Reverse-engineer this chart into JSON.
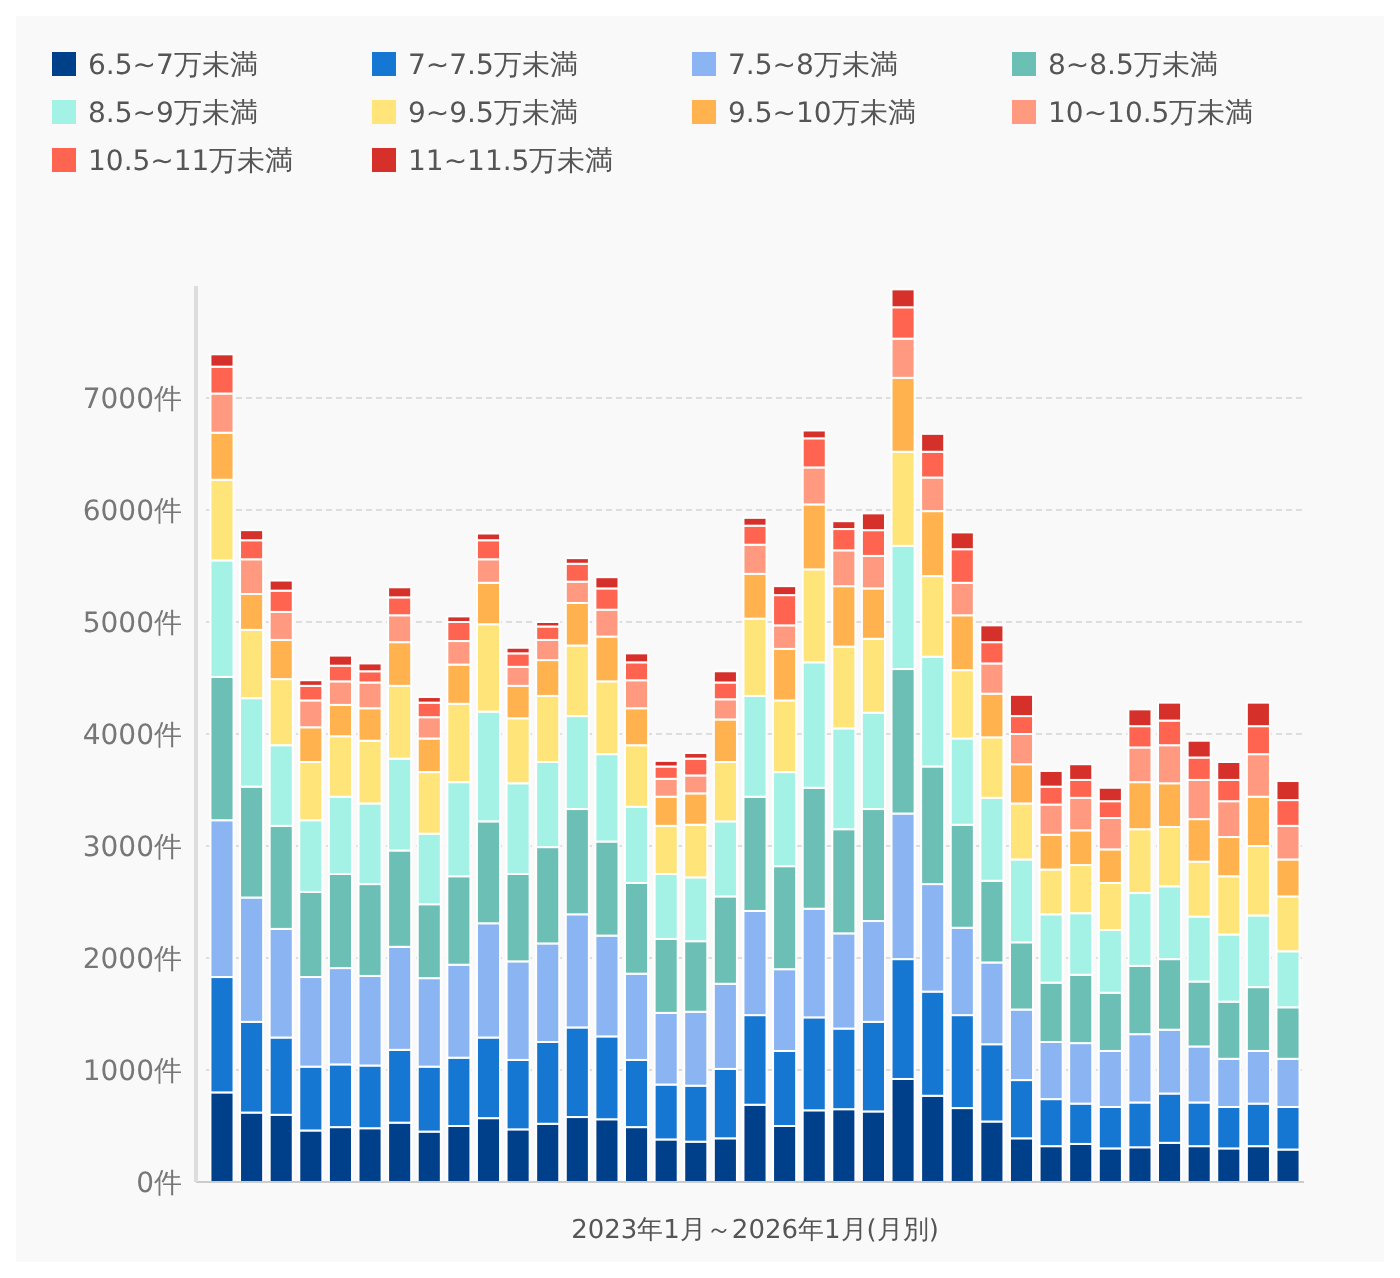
{
  "chart_data": {
    "type": "bar",
    "stacked": true,
    "xlabel": "2023年1月～2026年1月(月別)",
    "categories": [
      null,
      null,
      null,
      null,
      null,
      null,
      null,
      null,
      null,
      null,
      null,
      null,
      null,
      null,
      null,
      null,
      null,
      null,
      null,
      null,
      null,
      null,
      null,
      null,
      null,
      null,
      null,
      null,
      null,
      null,
      null,
      null,
      null,
      null,
      null,
      null,
      null
    ],
    "ylim": [
      0,
      8000
    ],
    "yticks": [
      {
        "value": 0,
        "label": "0件"
      },
      {
        "value": 1000,
        "label": "1000件"
      },
      {
        "value": 2000,
        "label": "2000件"
      },
      {
        "value": 3000,
        "label": "3000件"
      },
      {
        "value": 4000,
        "label": "4000件"
      },
      {
        "value": 5000,
        "label": "5000件"
      },
      {
        "value": 6000,
        "label": "6000件"
      },
      {
        "value": 7000,
        "label": "7000件"
      }
    ],
    "grid": "y",
    "legend": "top",
    "series": [
      {
        "name": "6.5~7万未満",
        "color": "#003f8a",
        "values": [
          800,
          620,
          600,
          460,
          490,
          480,
          530,
          450,
          500,
          570,
          470,
          520,
          580,
          560,
          490,
          380,
          360,
          390,
          690,
          500,
          640,
          650,
          630,
          920,
          770,
          660,
          540,
          390,
          320,
          340,
          300,
          310,
          350,
          320,
          300,
          320,
          290
        ]
      },
      {
        "name": "7~7.5万未満",
        "color": "#1677d2",
        "values": [
          1030,
          810,
          690,
          570,
          560,
          560,
          650,
          580,
          610,
          720,
          620,
          730,
          800,
          740,
          600,
          490,
          500,
          620,
          800,
          670,
          830,
          720,
          800,
          1070,
          930,
          830,
          690,
          520,
          420,
          360,
          370,
          400,
          440,
          390,
          370,
          380,
          380
        ]
      },
      {
        "name": "7.5~8万未満",
        "color": "#8ab4f2",
        "values": [
          1400,
          1110,
          970,
          800,
          860,
          800,
          920,
          790,
          830,
          1020,
          880,
          880,
          1010,
          900,
          770,
          640,
          660,
          760,
          930,
          730,
          970,
          850,
          900,
          1300,
          960,
          780,
          730,
          630,
          510,
          540,
          500,
          610,
          570,
          500,
          430,
          470,
          430
        ]
      },
      {
        "name": "8~8.5万未満",
        "color": "#6cbfb5",
        "values": [
          1280,
          990,
          920,
          760,
          840,
          820,
          860,
          660,
          790,
          910,
          780,
          860,
          940,
          840,
          810,
          660,
          630,
          780,
          1020,
          920,
          1080,
          930,
          1000,
          1290,
          1050,
          920,
          730,
          600,
          530,
          610,
          520,
          610,
          630,
          580,
          510,
          570,
          460
        ]
      },
      {
        "name": "8.5~9万未満",
        "color": "#a4f2e6",
        "values": [
          1040,
          790,
          720,
          640,
          690,
          720,
          820,
          630,
          840,
          980,
          810,
          760,
          830,
          780,
          680,
          580,
          570,
          670,
          900,
          840,
          1120,
          900,
          860,
          1100,
          980,
          770,
          740,
          740,
          610,
          550,
          560,
          650,
          650,
          580,
          600,
          640,
          500
        ]
      },
      {
        "name": "9~9.5万未満",
        "color": "#ffe47a",
        "values": [
          720,
          610,
          590,
          520,
          540,
          560,
          650,
          550,
          700,
          780,
          580,
          590,
          630,
          650,
          550,
          430,
          470,
          530,
          690,
          640,
          830,
          730,
          660,
          840,
          720,
          610,
          540,
          500,
          400,
          430,
          420,
          570,
          530,
          490,
          520,
          620,
          490
        ]
      },
      {
        "name": "9.5~10万未満",
        "color": "#ffb24d",
        "values": [
          420,
          320,
          350,
          310,
          280,
          290,
          390,
          300,
          350,
          370,
          290,
          320,
          380,
          400,
          330,
          260,
          280,
          380,
          400,
          460,
          580,
          540,
          450,
          660,
          580,
          490,
          390,
          350,
          310,
          310,
          300,
          420,
          390,
          380,
          350,
          440,
          330
        ]
      },
      {
        "name": "10~10.5万未満",
        "color": "#ff9a80",
        "values": [
          350,
          310,
          250,
          240,
          210,
          230,
          240,
          190,
          210,
          210,
          170,
          180,
          190,
          240,
          250,
          160,
          160,
          180,
          260,
          210,
          330,
          320,
          290,
          350,
          300,
          290,
          270,
          270,
          270,
          290,
          280,
          310,
          340,
          350,
          320,
          380,
          300
        ]
      },
      {
        "name": "10.5~11万未満",
        "color": "#ff6450",
        "values": [
          240,
          170,
          190,
          130,
          140,
          100,
          160,
          130,
          170,
          170,
          120,
          120,
          160,
          190,
          160,
          110,
          150,
          150,
          170,
          270,
          260,
          190,
          230,
          280,
          230,
          300,
          190,
          160,
          160,
          160,
          150,
          190,
          220,
          200,
          190,
          250,
          230
        ]
      },
      {
        "name": "11~11.5万未満",
        "color": "#d6302a",
        "values": [
          110,
          90,
          90,
          50,
          90,
          70,
          90,
          50,
          50,
          60,
          50,
          40,
          50,
          100,
          80,
          50,
          50,
          100,
          70,
          80,
          70,
          70,
          150,
          160,
          160,
          150,
          150,
          190,
          140,
          140,
          120,
          150,
          160,
          150,
          160,
          210,
          170
        ]
      }
    ]
  }
}
